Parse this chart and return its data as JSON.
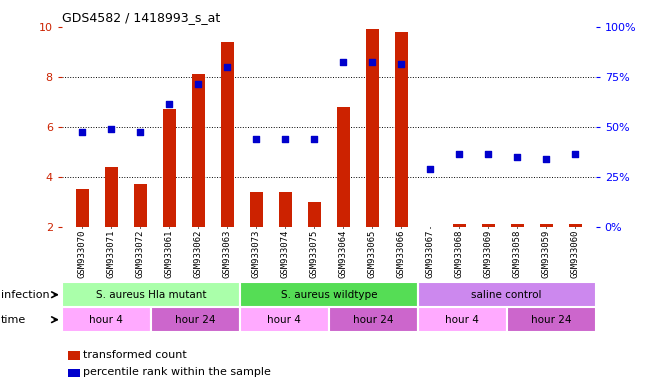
{
  "title": "GDS4582 / 1418993_s_at",
  "samples": [
    "GSM933070",
    "GSM933071",
    "GSM933072",
    "GSM933061",
    "GSM933062",
    "GSM933063",
    "GSM933073",
    "GSM933074",
    "GSM933075",
    "GSM933064",
    "GSM933065",
    "GSM933066",
    "GSM933067",
    "GSM933068",
    "GSM933069",
    "GSM933058",
    "GSM933059",
    "GSM933060"
  ],
  "bar_values": [
    3.5,
    4.4,
    3.7,
    6.7,
    8.1,
    9.4,
    3.4,
    3.4,
    3.0,
    6.8,
    9.9,
    9.8,
    2.0,
    2.1,
    2.1,
    2.1,
    2.1,
    2.1
  ],
  "dot_values": [
    5.8,
    5.9,
    5.8,
    6.9,
    7.7,
    8.4,
    5.5,
    5.5,
    5.5,
    8.6,
    8.6,
    8.5,
    4.3,
    4.9,
    4.9,
    4.8,
    4.7,
    4.9
  ],
  "ylim": [
    2.0,
    10.0
  ],
  "yticks_left": [
    2,
    4,
    6,
    8,
    10
  ],
  "yticks_right_vals": [
    0,
    25,
    50,
    75,
    100
  ],
  "bar_color": "#cc2200",
  "dot_color": "#0000cc",
  "bar_width": 0.45,
  "infection_groups": [
    {
      "label": "S. aureus Hla mutant",
      "start": 0,
      "end": 6,
      "color": "#aaffaa"
    },
    {
      "label": "S. aureus wildtype",
      "start": 6,
      "end": 12,
      "color": "#55dd55"
    },
    {
      "label": "saline control",
      "start": 12,
      "end": 18,
      "color": "#cc88ee"
    }
  ],
  "time_groups": [
    {
      "label": "hour 4",
      "start": 0,
      "end": 3,
      "color": "#ffaaff"
    },
    {
      "label": "hour 24",
      "start": 3,
      "end": 6,
      "color": "#cc66cc"
    },
    {
      "label": "hour 4",
      "start": 6,
      "end": 9,
      "color": "#ffaaff"
    },
    {
      "label": "hour 24",
      "start": 9,
      "end": 12,
      "color": "#cc66cc"
    },
    {
      "label": "hour 4",
      "start": 12,
      "end": 15,
      "color": "#ffaaff"
    },
    {
      "label": "hour 24",
      "start": 15,
      "end": 18,
      "color": "#cc66cc"
    }
  ],
  "legend_bar_label": "transformed count",
  "legend_dot_label": "percentile rank within the sample",
  "xlabel_infection": "infection",
  "xlabel_time": "time",
  "xtick_bg_color": "#cccccc",
  "plot_bg": "#ffffff"
}
